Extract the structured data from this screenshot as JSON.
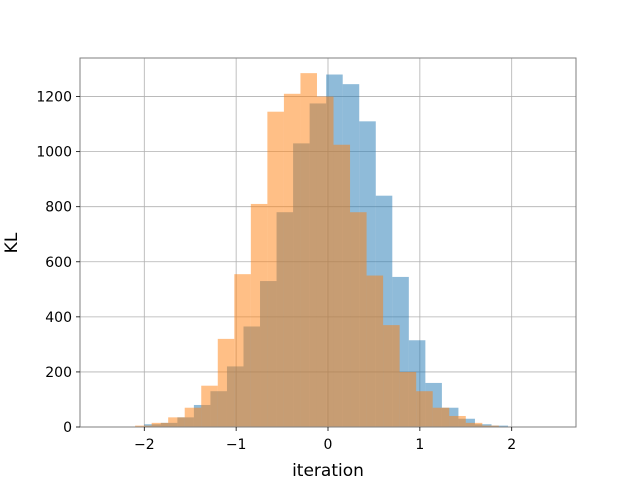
{
  "chart_data": {
    "type": "bar",
    "title": "",
    "xlabel": "iteration",
    "ylabel": "KL",
    "xlim": [
      -2.7,
      2.7
    ],
    "ylim": [
      0,
      1340
    ],
    "x_ticks": [
      -2,
      -1,
      0,
      1,
      2
    ],
    "x_tick_labels": [
      "−2",
      "−1",
      "0",
      "1",
      "2"
    ],
    "y_ticks": [
      0,
      200,
      400,
      600,
      800,
      1000,
      1200
    ],
    "y_tick_labels": [
      "0",
      "200",
      "400",
      "600",
      "800",
      "1000",
      "1200"
    ],
    "grid": true,
    "histogram": true,
    "series": [
      {
        "color": "#1f77b4",
        "alpha": 0.5,
        "bin_edges": [
          -2.0,
          -1.82,
          -1.64,
          -1.46,
          -1.28,
          -1.1,
          -0.92,
          -0.74,
          -0.56,
          -0.38,
          -0.2,
          -0.02,
          0.16,
          0.34,
          0.52,
          0.7,
          0.88,
          1.06,
          1.24,
          1.42,
          1.6,
          1.78,
          1.96
        ],
        "values": [
          10,
          15,
          35,
          80,
          130,
          220,
          365,
          530,
          780,
          1030,
          1175,
          1280,
          1245,
          1110,
          840,
          545,
          315,
          160,
          70,
          30,
          10,
          5
        ]
      },
      {
        "color": "#ff7f0e",
        "alpha": 0.5,
        "bin_edges": [
          -2.1,
          -1.92,
          -1.74,
          -1.56,
          -1.38,
          -1.2,
          -1.02,
          -0.84,
          -0.66,
          -0.48,
          -0.3,
          -0.12,
          0.06,
          0.24,
          0.42,
          0.6,
          0.78,
          0.96,
          1.14,
          1.32,
          1.5,
          1.68,
          1.86
        ],
        "values": [
          5,
          15,
          35,
          70,
          150,
          320,
          555,
          810,
          1145,
          1210,
          1285,
          1200,
          1025,
          780,
          550,
          370,
          200,
          130,
          70,
          40,
          15,
          5
        ]
      }
    ]
  }
}
